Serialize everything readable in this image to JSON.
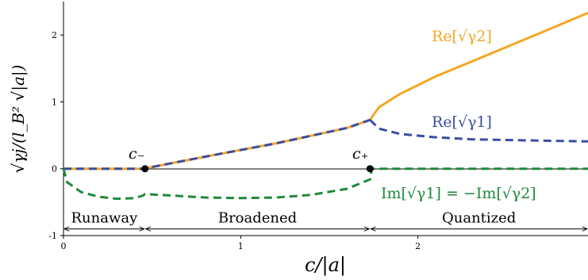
{
  "chart_data": {
    "type": "line",
    "xlabel": "c/|a|",
    "ylabel": "√γj/(l_B² √|a|)",
    "xlim": [
      0,
      2.96
    ],
    "ylim": [
      -1,
      2.5
    ],
    "xticks": [
      0,
      1,
      2
    ],
    "yticks": [
      -1,
      0,
      1,
      2
    ],
    "grid": false,
    "colors": {
      "orange": "#f5a623",
      "blue": "#3b4ea0",
      "green": "#1f8a3a",
      "axis": "#000000"
    },
    "series": [
      {
        "name": "Re[√γ2]",
        "x": [
          0,
          0.45,
          0.8,
          1.2,
          1.6,
          1.73,
          1.78,
          1.9,
          2.1,
          2.3,
          2.5,
          2.7,
          2.96
        ],
        "values": [
          0,
          0,
          0.18,
          0.38,
          0.61,
          0.73,
          0.92,
          1.12,
          1.38,
          1.6,
          1.82,
          2.04,
          2.33
        ]
      },
      {
        "name": "Re[√γ1]",
        "x": [
          0,
          0.45,
          0.8,
          1.2,
          1.6,
          1.73,
          1.78,
          1.9,
          2.1,
          2.3,
          2.5,
          2.7,
          2.96
        ],
        "values": [
          0,
          0,
          0.18,
          0.38,
          0.61,
          0.73,
          0.6,
          0.52,
          0.47,
          0.44,
          0.43,
          0.42,
          0.41
        ]
      },
      {
        "name": "Im[√γ1] = −Im[√γ2]",
        "x": [
          0,
          0.02,
          0.1,
          0.2,
          0.3,
          0.4,
          0.45,
          0.46,
          0.6,
          0.8,
          1.0,
          1.2,
          1.4,
          1.6,
          1.73,
          1.74,
          2.0,
          2.5,
          2.96
        ],
        "values": [
          0,
          -0.2,
          -0.35,
          -0.42,
          -0.45,
          -0.44,
          -0.4,
          -0.38,
          -0.4,
          -0.43,
          -0.44,
          -0.43,
          -0.39,
          -0.3,
          -0.16,
          0,
          0,
          0,
          0
        ]
      }
    ],
    "points": [
      {
        "label": "c₋",
        "x": 0.46,
        "y": 0
      },
      {
        "label": "c₊",
        "x": 1.73,
        "y": 0
      }
    ],
    "annotations": [
      {
        "text": "Re[√γ2]",
        "x": 2.27,
        "y": 2.0
      },
      {
        "text": "Re[√γ1]",
        "x": 2.27,
        "y": 0.7
      },
      {
        "text": "Im[√γ1] = −Im[√γ2]",
        "x": 2.27,
        "y": -0.3
      }
    ],
    "regions": [
      {
        "label": "Runaway",
        "from": 0,
        "to": 0.46
      },
      {
        "label": "Broadened",
        "from": 0.46,
        "to": 1.73
      },
      {
        "label": "Quantized",
        "from": 1.73,
        "to": 2.96
      }
    ]
  }
}
